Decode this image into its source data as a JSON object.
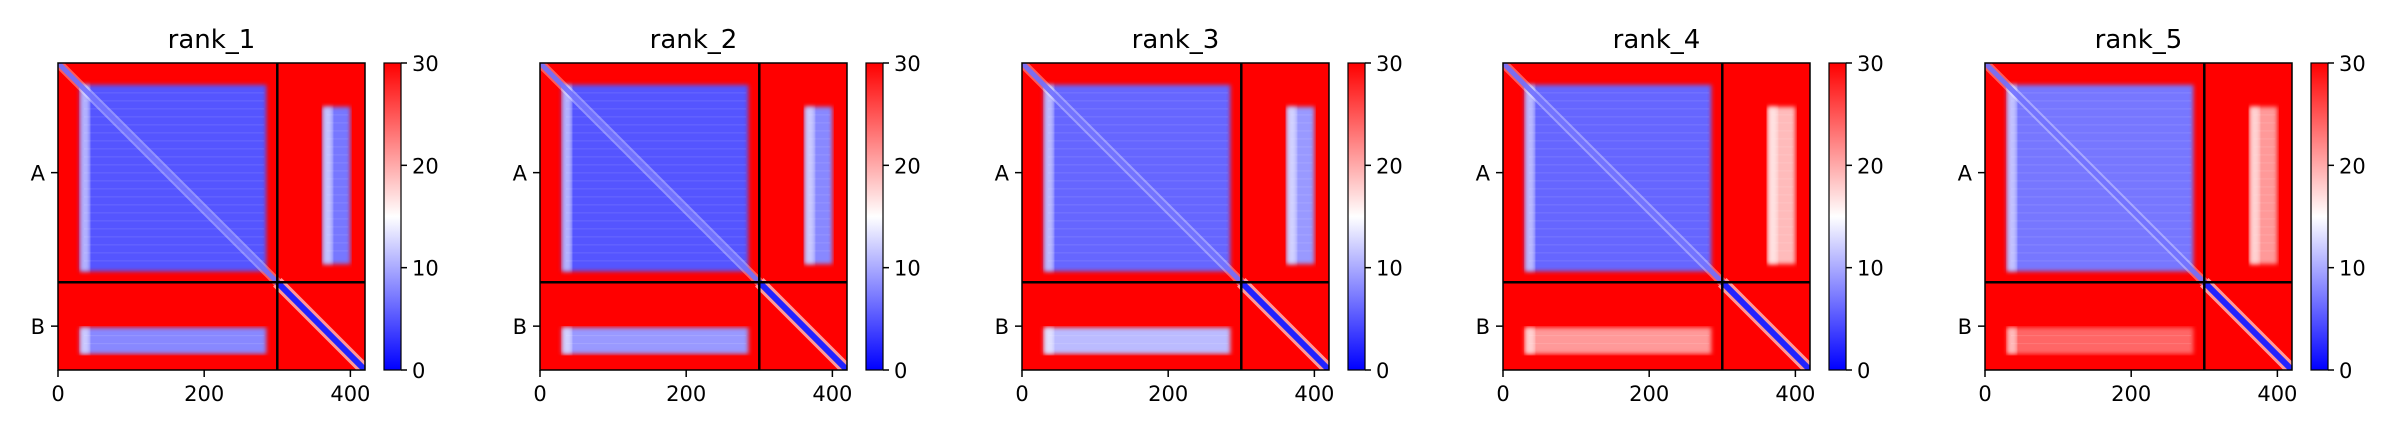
{
  "figure": {
    "colorbar": {
      "ticks": [
        0,
        10,
        20,
        30
      ],
      "min": 0,
      "max": 30,
      "colors": {
        "low": "#0000ff",
        "mid": "#ffffff",
        "high": "#ff0000"
      }
    }
  },
  "chart_data": [
    {
      "type": "heatmap",
      "title": "rank_1",
      "xlim": [
        0,
        420
      ],
      "ylim": [
        420,
        0
      ],
      "x_ticks": [
        0,
        200,
        400
      ],
      "chain_boundary": 300,
      "y_tick_labels": [
        {
          "label": "A",
          "value": 150
        },
        {
          "label": "B",
          "value": 360
        }
      ],
      "blocks": [
        {
          "region": "A-A",
          "x": [
            30,
            285
          ],
          "y": [
            30,
            285
          ],
          "value": 5
        },
        {
          "region": "A-B",
          "x": [
            362,
            400
          ],
          "y": [
            60,
            275
          ],
          "value": 7
        },
        {
          "region": "B-A",
          "x": [
            30,
            285
          ],
          "y": [
            362,
            398
          ],
          "value": 8
        },
        {
          "region": "B-B diagonal",
          "x": [
            300,
            420
          ],
          "y": [
            300,
            420
          ],
          "value": 2
        }
      ],
      "background_value": 30
    },
    {
      "type": "heatmap",
      "title": "rank_2",
      "xlim": [
        0,
        420
      ],
      "ylim": [
        420,
        0
      ],
      "x_ticks": [
        0,
        200,
        400
      ],
      "chain_boundary": 300,
      "y_tick_labels": [
        {
          "label": "A",
          "value": 150
        },
        {
          "label": "B",
          "value": 360
        }
      ],
      "blocks": [
        {
          "region": "A-A",
          "x": [
            30,
            285
          ],
          "y": [
            30,
            285
          ],
          "value": 5
        },
        {
          "region": "A-B",
          "x": [
            362,
            400
          ],
          "y": [
            60,
            275
          ],
          "value": 8
        },
        {
          "region": "B-A",
          "x": [
            30,
            285
          ],
          "y": [
            362,
            398
          ],
          "value": 9
        },
        {
          "region": "B-B diagonal",
          "x": [
            300,
            420
          ],
          "y": [
            300,
            420
          ],
          "value": 2
        }
      ],
      "background_value": 30
    },
    {
      "type": "heatmap",
      "title": "rank_3",
      "xlim": [
        0,
        420
      ],
      "ylim": [
        420,
        0
      ],
      "x_ticks": [
        0,
        200,
        400
      ],
      "chain_boundary": 300,
      "y_tick_labels": [
        {
          "label": "A",
          "value": 150
        },
        {
          "label": "B",
          "value": 360
        }
      ],
      "blocks": [
        {
          "region": "A-A",
          "x": [
            30,
            285
          ],
          "y": [
            30,
            285
          ],
          "value": 6
        },
        {
          "region": "A-B",
          "x": [
            362,
            400
          ],
          "y": [
            60,
            275
          ],
          "value": 9
        },
        {
          "region": "B-A",
          "x": [
            30,
            285
          ],
          "y": [
            362,
            398
          ],
          "value": 11
        },
        {
          "region": "B-B diagonal",
          "x": [
            300,
            420
          ],
          "y": [
            300,
            420
          ],
          "value": 2
        }
      ],
      "background_value": 30
    },
    {
      "type": "heatmap",
      "title": "rank_4",
      "xlim": [
        0,
        420
      ],
      "ylim": [
        420,
        0
      ],
      "x_ticks": [
        0,
        200,
        400
      ],
      "chain_boundary": 300,
      "y_tick_labels": [
        {
          "label": "A",
          "value": 150
        },
        {
          "label": "B",
          "value": 360
        }
      ],
      "blocks": [
        {
          "region": "A-A",
          "x": [
            30,
            285
          ],
          "y": [
            30,
            285
          ],
          "value": 6
        },
        {
          "region": "A-B",
          "x": [
            362,
            400
          ],
          "y": [
            60,
            275
          ],
          "value": 19
        },
        {
          "region": "B-A",
          "x": [
            30,
            285
          ],
          "y": [
            362,
            398
          ],
          "value": 21
        },
        {
          "region": "B-B diagonal",
          "x": [
            300,
            420
          ],
          "y": [
            300,
            420
          ],
          "value": 2
        }
      ],
      "background_value": 30
    },
    {
      "type": "heatmap",
      "title": "rank_5",
      "xlim": [
        0,
        420
      ],
      "ylim": [
        420,
        0
      ],
      "x_ticks": [
        0,
        200,
        400
      ],
      "chain_boundary": 300,
      "y_tick_labels": [
        {
          "label": "A",
          "value": 150
        },
        {
          "label": "B",
          "value": 360
        }
      ],
      "blocks": [
        {
          "region": "A-A",
          "x": [
            30,
            285
          ],
          "y": [
            30,
            285
          ],
          "value": 7
        },
        {
          "region": "A-B",
          "x": [
            362,
            400
          ],
          "y": [
            60,
            275
          ],
          "value": 21
        },
        {
          "region": "B-A",
          "x": [
            30,
            285
          ],
          "y": [
            362,
            398
          ],
          "value": 24
        },
        {
          "region": "B-B diagonal",
          "x": [
            300,
            420
          ],
          "y": [
            300,
            420
          ],
          "value": 2
        }
      ],
      "background_value": 30
    }
  ]
}
